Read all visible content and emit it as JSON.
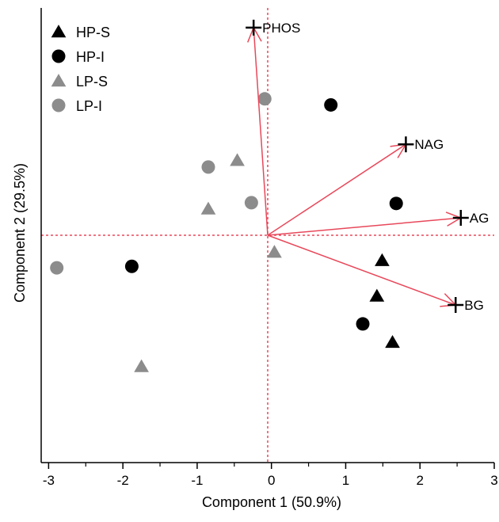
{
  "chart_data": {
    "type": "scatter",
    "title": "",
    "xlabel": "Component 1 (50.9%)",
    "ylabel": "Component 2 (29.5%)",
    "xlim": [
      -3.1,
      3.0
    ],
    "ylim": [
      -3.0,
      3.0
    ],
    "x_ticks": [
      -3,
      -2,
      -1,
      0,
      1,
      2,
      3
    ],
    "x_tick_labels": [
      "-3",
      "-2",
      "-1",
      "0",
      "1",
      "2",
      "3"
    ],
    "legend_position": "top-left",
    "reference_lines": {
      "x": -0.05,
      "y": 0.0,
      "color": "#e8485a"
    },
    "series": [
      {
        "name": "HP-S",
        "marker": "triangle",
        "color": "#000000",
        "points": [
          [
            1.49,
            -0.33
          ],
          [
            1.42,
            -0.8
          ],
          [
            1.63,
            -1.41
          ]
        ]
      },
      {
        "name": "HP-I",
        "marker": "circle",
        "color": "#000000",
        "points": [
          [
            0.8,
            1.72
          ],
          [
            1.68,
            0.42
          ],
          [
            -1.88,
            -0.41
          ],
          [
            1.23,
            -1.17
          ]
        ]
      },
      {
        "name": "LP-S",
        "marker": "triangle",
        "color": "#8c8c8c",
        "points": [
          [
            -0.46,
            0.99
          ],
          [
            -0.85,
            0.35
          ],
          [
            0.04,
            -0.22
          ],
          [
            -1.75,
            -1.73
          ]
        ]
      },
      {
        "name": "LP-I",
        "marker": "circle",
        "color": "#8c8c8c",
        "points": [
          [
            -0.09,
            1.8
          ],
          [
            -0.85,
            0.9
          ],
          [
            -0.27,
            0.43
          ],
          [
            -2.89,
            -0.43
          ]
        ]
      }
    ],
    "loadings": [
      {
        "label": "PHOS",
        "x": -0.24,
        "y": 2.74
      },
      {
        "label": "NAG",
        "x": 1.81,
        "y": 1.2
      },
      {
        "label": "AG",
        "x": 2.55,
        "y": 0.23
      },
      {
        "label": "BG",
        "x": 2.48,
        "y": -0.92
      }
    ],
    "loading_origin": [
      -0.05,
      0.0
    ],
    "loading_color": "#e8485a"
  }
}
